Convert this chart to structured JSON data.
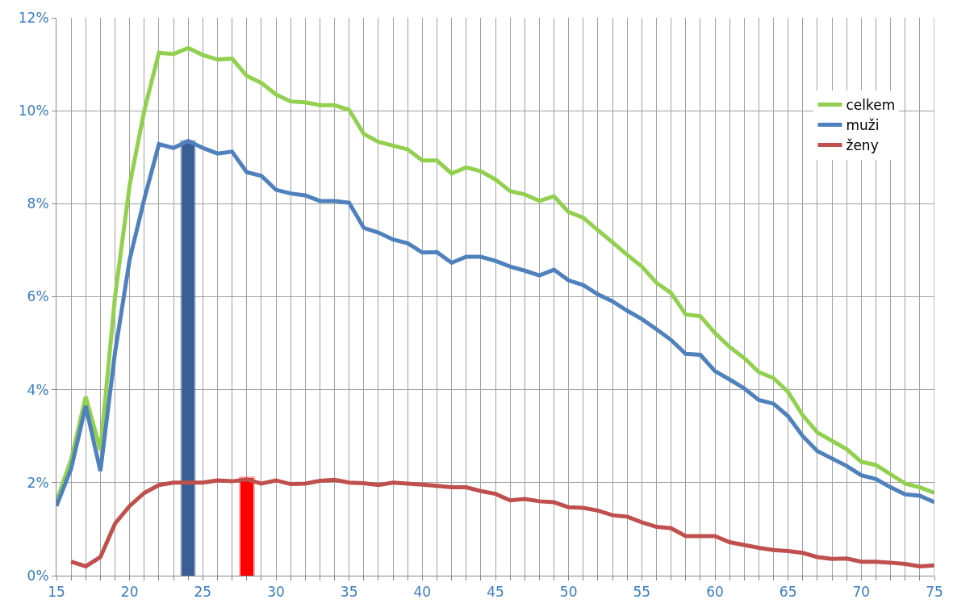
{
  "chart_data": {
    "type": "line",
    "x": [
      15,
      16,
      17,
      18,
      19,
      20,
      21,
      22,
      23,
      24,
      25,
      26,
      27,
      28,
      29,
      30,
      31,
      32,
      33,
      34,
      35,
      36,
      37,
      38,
      39,
      40,
      41,
      42,
      43,
      44,
      45,
      46,
      47,
      48,
      49,
      50,
      51,
      52,
      53,
      54,
      55,
      56,
      57,
      58,
      59,
      60,
      61,
      62,
      63,
      64,
      65,
      66,
      67,
      68,
      69,
      70,
      71,
      72,
      73,
      74,
      75
    ],
    "series": [
      {
        "name": "celkem",
        "color": "#92d050",
        "values": [
          1.6,
          2.5,
          3.85,
          2.7,
          6.0,
          8.4,
          10.0,
          11.25,
          11.22,
          11.35,
          11.2,
          11.1,
          11.12,
          10.75,
          10.6,
          10.35,
          10.2,
          10.18,
          10.12,
          10.12,
          10.02,
          9.5,
          9.33,
          9.25,
          9.17,
          8.93,
          8.93,
          8.65,
          8.78,
          8.7,
          8.52,
          8.27,
          8.2,
          8.06,
          8.16,
          7.82,
          7.7,
          7.43,
          7.17,
          6.9,
          6.65,
          6.3,
          6.08,
          5.62,
          5.58,
          5.22,
          4.92,
          4.68,
          4.38,
          4.25,
          3.95,
          3.45,
          3.08,
          2.9,
          2.72,
          2.45,
          2.38,
          2.18,
          1.98,
          1.9,
          1.78
        ]
      },
      {
        "name": "muži",
        "color": "#4f81bd",
        "values": [
          1.5,
          2.3,
          3.65,
          2.25,
          4.8,
          6.8,
          8.1,
          9.28,
          9.2,
          9.35,
          9.2,
          9.08,
          9.12,
          8.68,
          8.6,
          8.3,
          8.22,
          8.18,
          8.06,
          8.06,
          8.02,
          7.48,
          7.38,
          7.23,
          7.15,
          6.95,
          6.96,
          6.73,
          6.86,
          6.86,
          6.77,
          6.65,
          6.56,
          6.46,
          6.58,
          6.35,
          6.25,
          6.05,
          5.9,
          5.7,
          5.52,
          5.3,
          5.07,
          4.77,
          4.75,
          4.4,
          4.22,
          4.03,
          3.78,
          3.7,
          3.43,
          3.0,
          2.68,
          2.52,
          2.36,
          2.16,
          2.08,
          1.9,
          1.75,
          1.72,
          1.58
        ]
      },
      {
        "name": "ženy",
        "color": "#c0504d",
        "values": [
          null,
          0.3,
          0.2,
          0.4,
          1.12,
          1.5,
          1.78,
          1.95,
          2.0,
          2.0,
          2.0,
          2.05,
          2.03,
          2.07,
          1.98,
          2.05,
          1.97,
          1.98,
          2.04,
          2.06,
          2.0,
          1.99,
          1.95,
          2.0,
          1.98,
          1.96,
          1.93,
          1.9,
          1.9,
          1.82,
          1.76,
          1.62,
          1.65,
          1.6,
          1.58,
          1.47,
          1.46,
          1.4,
          1.3,
          1.27,
          1.15,
          1.05,
          1.02,
          0.85,
          0.85,
          0.85,
          0.72,
          0.66,
          0.6,
          0.55,
          0.53,
          0.49,
          0.4,
          0.36,
          0.37,
          0.3,
          0.3,
          0.28,
          0.25,
          0.2,
          0.22
        ]
      },
      {
        "type": "bar",
        "x": [
          24
        ],
        "color": "#3a5f94",
        "values": [
          9.35
        ]
      },
      {
        "type": "bar",
        "x": [
          28
        ],
        "color": "#ff0000",
        "values": [
          2.1
        ]
      }
    ],
    "xlim": [
      15,
      75
    ],
    "xticks": [
      15,
      {
        "value": 16,
        "label": null
      },
      {
        "value": 17,
        "label": null
      },
      {
        "value": 18,
        "label": null
      },
      {
        "value": 19,
        "label": null
      },
      20,
      {
        "value": 21,
        "label": null
      },
      {
        "value": 22,
        "label": null
      },
      {
        "value": 23,
        "label": null
      },
      {
        "value": 24,
        "label": null
      },
      25,
      {
        "value": 26,
        "label": null
      },
      {
        "value": 27,
        "label": null
      },
      {
        "value": 28,
        "label": null
      },
      {
        "value": 29,
        "label": null
      },
      30,
      {
        "value": 31,
        "label": null
      },
      {
        "value": 32,
        "label": null
      },
      {
        "value": 33,
        "label": null
      },
      {
        "value": 34,
        "label": null
      },
      35,
      {
        "value": 36,
        "label": null
      },
      {
        "value": 37,
        "label": null
      },
      {
        "value": 38,
        "label": null
      },
      {
        "value": 39,
        "label": null
      },
      40,
      {
        "value": 41,
        "label": null
      },
      {
        "value": 42,
        "label": null
      },
      {
        "value": 43,
        "label": null
      },
      {
        "value": 44,
        "label": null
      },
      45,
      {
        "value": 46,
        "label": null
      },
      {
        "value": 47,
        "label": null
      },
      {
        "value": 48,
        "label": null
      },
      {
        "value": 49,
        "label": null
      },
      50,
      {
        "value": 51,
        "label": null
      },
      {
        "value": 52,
        "label": null
      },
      {
        "value": 53,
        "label": null
      },
      {
        "value": 54,
        "label": null
      },
      55,
      {
        "value": 56,
        "label": null
      },
      {
        "value": 57,
        "label": null
      },
      {
        "value": 58,
        "label": null
      },
      {
        "value": 59,
        "label": null
      },
      60,
      {
        "value": 61,
        "label": null
      },
      {
        "value": 62,
        "label": null
      },
      {
        "value": 63,
        "label": null
      },
      {
        "value": 64,
        "label": null
      },
      65,
      {
        "value": 66,
        "label": null
      },
      {
        "value": 67,
        "label": null
      },
      {
        "value": 68,
        "label": null
      },
      {
        "value": 69,
        "label": null
      },
      70,
      {
        "value": 71,
        "label": null
      },
      {
        "value": 72,
        "label": null
      },
      {
        "value": 73,
        "label": null
      },
      {
        "value": 74,
        "label": null
      },
      75
    ],
    "ylim": [
      0,
      12
    ],
    "yticks": [
      {
        "value": 0,
        "label": "0%"
      },
      {
        "value": 2,
        "label": "2%"
      },
      {
        "value": 4,
        "label": "4%"
      },
      {
        "value": 6,
        "label": "6%"
      },
      {
        "value": 8,
        "label": "8%"
      },
      {
        "value": 10,
        "label": "10%"
      },
      {
        "value": 12,
        "label": "12%"
      }
    ],
    "grid": true,
    "legend": "top right",
    "marker": "none",
    "line_style": "solid"
  }
}
